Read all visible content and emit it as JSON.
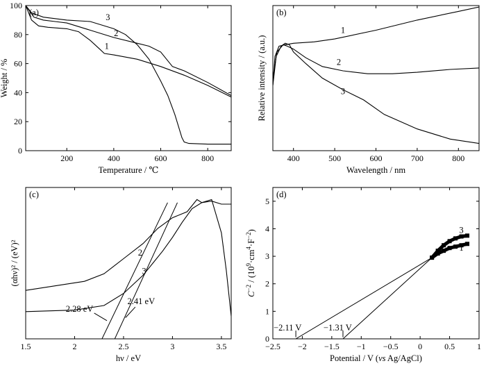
{
  "chart_data": [
    {
      "type": "line",
      "panel_label": "(a)",
      "xlabel": "Temperature / ℃",
      "ylabel": "Weight / %",
      "xlim": [
        25,
        900
      ],
      "ylim": [
        0,
        100
      ],
      "xticks": [
        200,
        400,
        600,
        800
      ],
      "yticks": [
        0,
        20,
        40,
        60,
        80,
        100
      ],
      "grid": false,
      "series": [
        {
          "name": "1",
          "x": [
            25,
            50,
            80,
            120,
            200,
            250,
            300,
            340,
            360,
            400,
            500,
            600,
            700,
            800,
            900
          ],
          "y": [
            100,
            90,
            86,
            85,
            84,
            82,
            76,
            70,
            67,
            66,
            63,
            58,
            52,
            45,
            37
          ]
        },
        {
          "name": "2",
          "x": [
            25,
            60,
            100,
            150,
            200,
            300,
            400,
            500,
            550,
            600,
            650,
            700,
            800,
            900
          ],
          "y": [
            100,
            92,
            90,
            89,
            88,
            83,
            78,
            74,
            72,
            68,
            58,
            55,
            47,
            38
          ]
        },
        {
          "name": "3",
          "x": [
            25,
            50,
            100,
            200,
            300,
            400,
            450,
            500,
            550,
            600,
            630,
            660,
            690,
            700,
            720,
            800,
            900
          ],
          "y": [
            100,
            95,
            92,
            90,
            89,
            84,
            80,
            73,
            63,
            48,
            38,
            25,
            9,
            6,
            5,
            4.5,
            4.5
          ]
        }
      ],
      "annotations": [
        {
          "text": "1",
          "x": 370,
          "y": 70
        },
        {
          "text": "2",
          "x": 410,
          "y": 79
        },
        {
          "text": "3",
          "x": 375,
          "y": 90
        }
      ]
    },
    {
      "type": "line",
      "panel_label": "(b)",
      "xlabel": "Wavelength / nm",
      "ylabel": "Relative intensity / (a.u.)",
      "xlim": [
        350,
        850
      ],
      "ylim": [
        0,
        100
      ],
      "xticks": [
        400,
        500,
        600,
        700,
        800
      ],
      "yticks": [],
      "grid": false,
      "series": [
        {
          "name": "1",
          "x": [
            350,
            355,
            365,
            380,
            400,
            450,
            500,
            600,
            700,
            800,
            850
          ],
          "y": [
            45,
            65,
            72,
            73,
            74,
            75,
            77,
            83,
            90,
            96,
            99
          ]
        },
        {
          "name": "2",
          "x": [
            350,
            360,
            375,
            385,
            400,
            430,
            470,
            520,
            580,
            640,
            700,
            780,
            850
          ],
          "y": [
            50,
            68,
            73,
            72,
            70,
            64,
            58,
            55,
            53,
            53,
            54,
            56,
            57
          ]
        },
        {
          "name": "3",
          "x": [
            350,
            358,
            370,
            380,
            390,
            400,
            430,
            470,
            520,
            570,
            620,
            700,
            780,
            850
          ],
          "y": [
            45,
            65,
            72,
            74,
            73,
            68,
            60,
            50,
            42,
            35,
            25,
            15,
            8,
            5
          ]
        }
      ],
      "annotations": [
        {
          "text": "1",
          "x": 520,
          "y": 81
        },
        {
          "text": "2",
          "x": 510,
          "y": 59
        },
        {
          "text": "3",
          "x": 520,
          "y": 39
        }
      ]
    },
    {
      "type": "line",
      "panel_label": "(c)",
      "xlabel": "hν / eV",
      "ylabel": "(αhν)² / (eV)²",
      "xlim": [
        1.5,
        3.6
      ],
      "ylim": [
        0,
        100
      ],
      "xticks": [
        1.5,
        2.0,
        2.5,
        3.0,
        3.5
      ],
      "yticks": [],
      "grid": false,
      "series": [
        {
          "name": "2",
          "x": [
            1.5,
            1.8,
            2.1,
            2.3,
            2.5,
            2.7,
            2.85,
            3.0,
            3.15,
            3.25,
            3.3,
            3.4,
            3.5,
            3.55,
            3.6
          ],
          "y": [
            32,
            35,
            38,
            43,
            53,
            63,
            73,
            80,
            84,
            92,
            90,
            92,
            70,
            45,
            15
          ]
        },
        {
          "name": "3",
          "x": [
            1.5,
            2.0,
            2.3,
            2.5,
            2.6,
            2.7,
            2.8,
            2.9,
            3.0,
            3.1,
            3.2,
            3.3,
            3.4,
            3.5,
            3.6
          ],
          "y": [
            18,
            19,
            22,
            30,
            36,
            42,
            50,
            58,
            67,
            77,
            86,
            90,
            91,
            89,
            89
          ]
        },
        {
          "name": "tangent 2",
          "x": [
            2.28,
            2.95
          ],
          "y": [
            0,
            90
          ]
        },
        {
          "name": "tangent 3",
          "x": [
            2.41,
            3.05
          ],
          "y": [
            0,
            90
          ]
        }
      ],
      "annotations": [
        {
          "text": "2",
          "x": 2.67,
          "y": 55
        },
        {
          "text": "3",
          "x": 2.71,
          "y": 43
        },
        {
          "text": "2.28 eV",
          "x": 2.05,
          "y": 18
        },
        {
          "text": "2.41 eV",
          "x": 2.68,
          "y": 23
        }
      ]
    },
    {
      "type": "scatter",
      "panel_label": "(d)",
      "xlabel_parts": [
        "Potential / V (",
        "vs",
        " Ag/AgCl)"
      ],
      "ylabel_parts": {
        "main": "C",
        "sup1": "−2",
        " mid": "",
        "text": " / (10",
        "sup2": "9",
        "unit": "·cm",
        "sup3": "4",
        "unit2": "·F",
        "sup4": "−2",
        "close": ")"
      },
      "xlim": [
        -2.5,
        1.0
      ],
      "ylim": [
        0,
        5.5
      ],
      "xticks": [
        -2.5,
        -2.0,
        -1.5,
        -1.0,
        -0.5,
        0.0,
        0.5,
        1.0
      ],
      "yticks": [
        0,
        1,
        2,
        3,
        4,
        5
      ],
      "grid": false,
      "series": [
        {
          "name": "1",
          "x": [
            0.2,
            0.3,
            0.4,
            0.5,
            0.6,
            0.7,
            0.8
          ],
          "y": [
            2.95,
            3.1,
            3.2,
            3.3,
            3.35,
            3.4,
            3.45
          ]
        },
        {
          "name": "3",
          "x": [
            0.2,
            0.3,
            0.4,
            0.5,
            0.6,
            0.7,
            0.8
          ],
          "y": [
            2.95,
            3.2,
            3.4,
            3.55,
            3.65,
            3.72,
            3.75
          ]
        },
        {
          "name": "fit 1",
          "x": [
            -2.11,
            0.2
          ],
          "y": [
            0,
            2.95
          ]
        },
        {
          "name": "fit 3",
          "x": [
            -1.31,
            0.2
          ],
          "y": [
            0,
            2.95
          ]
        }
      ],
      "annotations": [
        {
          "text": "3",
          "x": 0.7,
          "y": 3.85
        },
        {
          "text": "1",
          "x": 0.7,
          "y": 3.2
        },
        {
          "text": "−2.11 V",
          "x": -2.25,
          "y": 0.3
        },
        {
          "text": "−1.31 V",
          "x": -1.4,
          "y": 0.3
        }
      ]
    }
  ]
}
